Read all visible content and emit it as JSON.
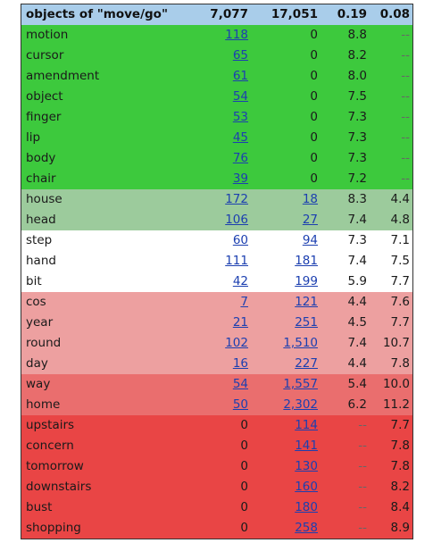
{
  "header": [
    "objects of \"move/go\"",
    "7,077",
    "17,051",
    "0.19",
    "0.08"
  ],
  "colors": {
    "header": "#a9cdea",
    "green": "#3dc93d",
    "light_green": "#9ccb9c",
    "white": "#ffffff",
    "pink": "#eda0a0",
    "salmon": "#ea6e6e",
    "red": "#e94545"
  },
  "rows": [
    {
      "word": "motion",
      "f1": "118",
      "f2": "0",
      "s1": "8.8",
      "s2": "--",
      "band": "green"
    },
    {
      "word": "cursor",
      "f1": "65",
      "f2": "0",
      "s1": "8.2",
      "s2": "--",
      "band": "green"
    },
    {
      "word": "amendment",
      "f1": "61",
      "f2": "0",
      "s1": "8.0",
      "s2": "--",
      "band": "green"
    },
    {
      "word": "object",
      "f1": "54",
      "f2": "0",
      "s1": "7.5",
      "s2": "--",
      "band": "green"
    },
    {
      "word": "finger",
      "f1": "53",
      "f2": "0",
      "s1": "7.3",
      "s2": "--",
      "band": "green"
    },
    {
      "word": "lip",
      "f1": "45",
      "f2": "0",
      "s1": "7.3",
      "s2": "--",
      "band": "green"
    },
    {
      "word": "body",
      "f1": "76",
      "f2": "0",
      "s1": "7.3",
      "s2": "--",
      "band": "green"
    },
    {
      "word": "chair",
      "f1": "39",
      "f2": "0",
      "s1": "7.2",
      "s2": "--",
      "band": "green"
    },
    {
      "word": "house",
      "f1": "172",
      "f2": "18",
      "s1": "8.3",
      "s2": "4.4",
      "band": "light_green"
    },
    {
      "word": "head",
      "f1": "106",
      "f2": "27",
      "s1": "7.4",
      "s2": "4.8",
      "band": "light_green"
    },
    {
      "word": "step",
      "f1": "60",
      "f2": "94",
      "s1": "7.3",
      "s2": "7.1",
      "band": "white"
    },
    {
      "word": "hand",
      "f1": "111",
      "f2": "181",
      "s1": "7.4",
      "s2": "7.5",
      "band": "white"
    },
    {
      "word": "bit",
      "f1": "42",
      "f2": "199",
      "s1": "5.9",
      "s2": "7.7",
      "band": "white"
    },
    {
      "word": "cos",
      "f1": "7",
      "f2": "121",
      "s1": "4.4",
      "s2": "7.6",
      "band": "pink"
    },
    {
      "word": "year",
      "f1": "21",
      "f2": "251",
      "s1": "4.5",
      "s2": "7.7",
      "band": "pink"
    },
    {
      "word": "round",
      "f1": "102",
      "f2": "1,510",
      "s1": "7.4",
      "s2": "10.7",
      "band": "pink"
    },
    {
      "word": "day",
      "f1": "16",
      "f2": "227",
      "s1": "4.4",
      "s2": "7.8",
      "band": "pink"
    },
    {
      "word": "way",
      "f1": "54",
      "f2": "1,557",
      "s1": "5.4",
      "s2": "10.0",
      "band": "salmon"
    },
    {
      "word": "home",
      "f1": "50",
      "f2": "2,302",
      "s1": "6.2",
      "s2": "11.2",
      "band": "salmon"
    },
    {
      "word": "upstairs",
      "f1": "0",
      "f2": "114",
      "s1": "--",
      "s2": "7.7",
      "band": "red"
    },
    {
      "word": "concern",
      "f1": "0",
      "f2": "141",
      "s1": "--",
      "s2": "7.8",
      "band": "red"
    },
    {
      "word": "tomorrow",
      "f1": "0",
      "f2": "130",
      "s1": "--",
      "s2": "7.8",
      "band": "red"
    },
    {
      "word": "downstairs",
      "f1": "0",
      "f2": "160",
      "s1": "--",
      "s2": "8.2",
      "band": "red"
    },
    {
      "word": "bust",
      "f1": "0",
      "f2": "180",
      "s1": "--",
      "s2": "8.4",
      "band": "red"
    },
    {
      "word": "shopping",
      "f1": "0",
      "f2": "258",
      "s1": "--",
      "s2": "8.9",
      "band": "red"
    }
  ]
}
